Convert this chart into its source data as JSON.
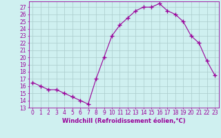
{
  "hours": [
    0,
    1,
    2,
    3,
    4,
    5,
    6,
    7,
    8,
    9,
    10,
    11,
    12,
    13,
    14,
    15,
    16,
    17,
    18,
    19,
    20,
    21,
    22,
    23
  ],
  "values": [
    16.5,
    16.0,
    15.5,
    15.5,
    15.0,
    14.5,
    14.0,
    13.5,
    17.0,
    20.0,
    23.0,
    24.5,
    25.5,
    26.5,
    27.0,
    27.0,
    27.5,
    26.5,
    26.0,
    25.0,
    23.0,
    22.0,
    19.5,
    17.5
  ],
  "line_color": "#990099",
  "marker": "+",
  "marker_size": 4,
  "line_width": 0.8,
  "background_color": "#cff0f0",
  "grid_color": "#aacccc",
  "xlabel": "Windchill (Refroidissement éolien,°C)",
  "xlabel_color": "#990099",
  "xlabel_fontsize": 6,
  "tick_color": "#990099",
  "tick_fontsize": 5.5,
  "ylim": [
    13,
    27.8
  ],
  "yticks": [
    13,
    14,
    15,
    16,
    17,
    18,
    19,
    20,
    21,
    22,
    23,
    24,
    25,
    26,
    27
  ],
  "xticks": [
    0,
    1,
    2,
    3,
    4,
    5,
    6,
    7,
    8,
    9,
    10,
    11,
    12,
    13,
    14,
    15,
    16,
    17,
    18,
    19,
    20,
    21,
    22,
    23
  ],
  "spine_color": "#990099"
}
